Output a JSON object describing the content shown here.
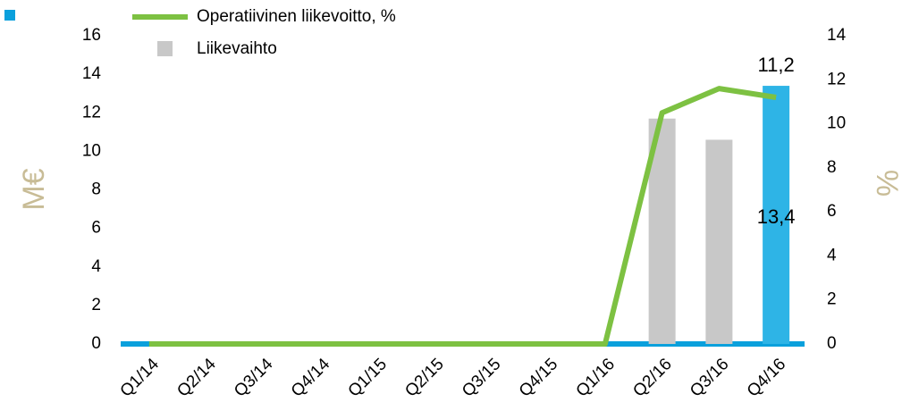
{
  "chart_data": {
    "type": "bar-line",
    "categories": [
      "Q1/14",
      "Q2/14",
      "Q3/14",
      "Q4/14",
      "Q1/15",
      "Q2/15",
      "Q3/15",
      "Q4/15",
      "Q1/16",
      "Q2/16",
      "Q3/16",
      "Q4/16"
    ],
    "ylabel": "M€",
    "y2label": "%",
    "ylim": [
      0,
      16
    ],
    "yticks": [
      0,
      2,
      4,
      6,
      8,
      10,
      12,
      14,
      16
    ],
    "y2lim": [
      0,
      14
    ],
    "y2ticks": [
      0,
      2,
      4,
      6,
      8,
      10,
      12,
      14
    ],
    "series": [
      {
        "name": "Operatiivinen liikevoitto, %",
        "type": "line",
        "axis": "y2",
        "color": "#7dc142",
        "values": [
          0,
          0,
          0,
          0,
          0,
          0,
          0,
          0,
          0,
          10.5,
          11.6,
          11.2
        ],
        "value_labels": [
          null,
          null,
          null,
          null,
          null,
          null,
          null,
          null,
          null,
          null,
          null,
          "11,2"
        ]
      },
      {
        "name": "Liikevaihto",
        "type": "bar",
        "color": "#c8c8c8",
        "colors": [
          "#c8c8c8",
          "#c8c8c8",
          "#c8c8c8",
          "#c8c8c8",
          "#c8c8c8",
          "#c8c8c8",
          "#c8c8c8",
          "#c8c8c8",
          "#c8c8c8",
          "#c8c8c8",
          "#c8c8c8",
          "#2eb4e6"
        ],
        "values": [
          0,
          0,
          0,
          0,
          0,
          0,
          0,
          0,
          0,
          11.7,
          10.6,
          13.4
        ],
        "value_labels": [
          null,
          null,
          null,
          null,
          null,
          null,
          null,
          null,
          null,
          null,
          null,
          "13,4"
        ]
      }
    ],
    "axis_color": "#0aa0dc"
  }
}
